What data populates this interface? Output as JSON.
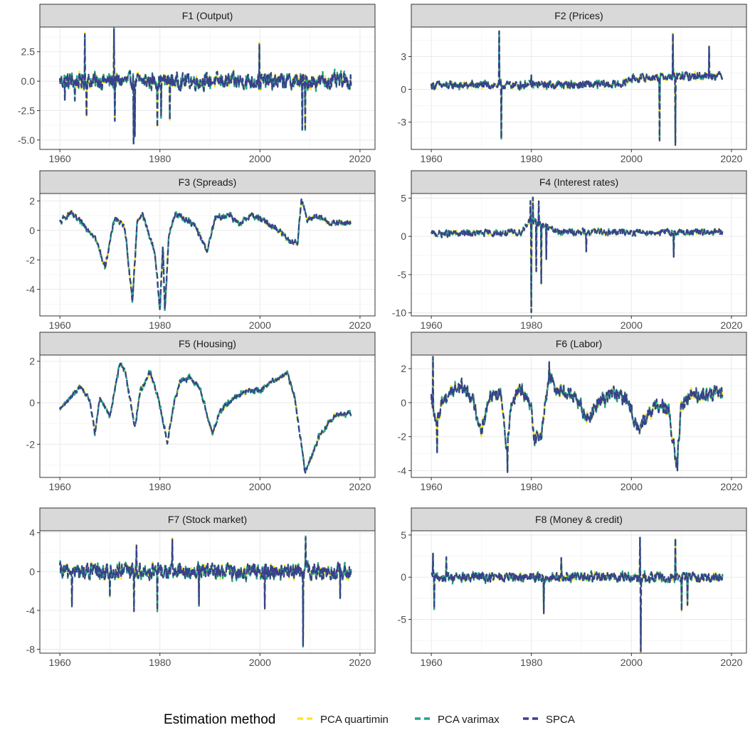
{
  "legend": {
    "title": "Estimation method",
    "entries": [
      {
        "label": "PCA quartimin",
        "color": "#FDE725"
      },
      {
        "label": "PCA varimax",
        "color": "#21A585"
      },
      {
        "label": "SPCA",
        "color": "#3B3F8C"
      }
    ]
  },
  "chart_data": [
    {
      "type": "line",
      "title": "F1 (Output)",
      "xlim": [
        1956,
        2023
      ],
      "ylim": [
        -5.8,
        4.6
      ],
      "xticks": [
        1960,
        1980,
        2000,
        2020
      ],
      "yticks": [
        2.5,
        0.0,
        -2.5,
        -5.0
      ],
      "ytick_labels": [
        "2.5",
        "0.0",
        "-2.5",
        "-5.0"
      ],
      "series_shape": {
        "start": 1960,
        "end": 2018.2,
        "base": 0,
        "noise": 0.65,
        "trend": [],
        "spikes": [
          [
            1961,
            -1.6
          ],
          [
            1963,
            -1.6
          ],
          [
            1965,
            4.0
          ],
          [
            1965.3,
            -3.0
          ],
          [
            1970.8,
            4.4
          ],
          [
            1971,
            -3.4
          ],
          [
            1974.7,
            -5.4
          ],
          [
            1975,
            -4.7
          ],
          [
            1979.5,
            -3.9
          ],
          [
            1980.2,
            -3.0
          ],
          [
            1982,
            -3.3
          ],
          [
            1999.9,
            3.2
          ],
          [
            2008.5,
            -4.1
          ],
          [
            2009,
            -4.0
          ]
        ]
      }
    },
    {
      "type": "line",
      "title": "F2 (Prices)",
      "xlim": [
        1956,
        2023
      ],
      "ylim": [
        -5.5,
        5.7
      ],
      "xticks": [
        1960,
        1980,
        2000,
        2020
      ],
      "yticks": [
        3,
        0,
        -3
      ],
      "ytick_labels": [
        "3",
        "0",
        "-3"
      ],
      "series_shape": {
        "start": 1960,
        "end": 2018.2,
        "base": 0,
        "noise": 0.35,
        "trend": [
          [
            1960,
            0.35
          ],
          [
            1998,
            0.45
          ],
          [
            2000,
            1.0
          ],
          [
            2018,
            1.3
          ]
        ],
        "spikes": [
          [
            1973.6,
            5.3
          ],
          [
            1974,
            -4.5
          ],
          [
            1980,
            1.3
          ],
          [
            2005.6,
            -4.7
          ],
          [
            2008.3,
            5.1
          ],
          [
            2008.8,
            -5.1
          ],
          [
            2015.5,
            3.9
          ]
        ]
      }
    },
    {
      "type": "line",
      "title": "F3 (Spreads)",
      "xlim": [
        1956,
        2023
      ],
      "ylim": [
        -5.8,
        2.5
      ],
      "xticks": [
        1960,
        1980,
        2000,
        2020
      ],
      "yticks": [
        2,
        0,
        -2,
        -4
      ],
      "ytick_labels": [
        "2",
        "0",
        "-2",
        "-4"
      ],
      "series_shape": {
        "start": 1960,
        "end": 2018.2,
        "base": 0,
        "noise": 0.18,
        "trend": [
          [
            1960,
            0.5
          ],
          [
            1962,
            1.2
          ],
          [
            1965,
            0.3
          ],
          [
            1967,
            -0.4
          ],
          [
            1969,
            -2.5
          ],
          [
            1971,
            0.9
          ],
          [
            1973,
            0.2
          ],
          [
            1974.5,
            -4.8
          ],
          [
            1975.5,
            0.7
          ],
          [
            1976.5,
            1.1
          ],
          [
            1979,
            -1.5
          ],
          [
            1980,
            -5.4
          ],
          [
            1980.6,
            -1.0
          ],
          [
            1981,
            -5.4
          ],
          [
            1981.8,
            -0.3
          ],
          [
            1983,
            1.1
          ],
          [
            1985,
            0.8
          ],
          [
            1987,
            0.3
          ],
          [
            1989.5,
            -1.4
          ],
          [
            1991,
            0.8
          ],
          [
            1994,
            1.1
          ],
          [
            1996,
            0.3
          ],
          [
            1998,
            1.1
          ],
          [
            2001,
            0.6
          ],
          [
            2003,
            0.2
          ],
          [
            2006,
            -0.7
          ],
          [
            2007.5,
            -0.9
          ],
          [
            2008.3,
            2.2
          ],
          [
            2009.5,
            0.6
          ],
          [
            2011,
            1.0
          ],
          [
            2014,
            0.5
          ],
          [
            2018,
            0.5
          ]
        ],
        "spikes": []
      }
    },
    {
      "type": "line",
      "title": "F4 (Interest rates)",
      "xlim": [
        1956,
        2023
      ],
      "ylim": [
        -10.4,
        5.6
      ],
      "xticks": [
        1960,
        1980,
        2000,
        2020
      ],
      "yticks": [
        5,
        0,
        -5,
        -10
      ],
      "ytick_labels": [
        "5",
        "0",
        "-5",
        "-10"
      ],
      "series_shape": {
        "start": 1960,
        "end": 2018.2,
        "base": 0,
        "noise": 0.4,
        "trend": [
          [
            1960,
            0.3
          ],
          [
            1978,
            0.5
          ],
          [
            1979.5,
            2.0
          ],
          [
            1983,
            1.3
          ],
          [
            1985,
            0.6
          ],
          [
            2018,
            0.5
          ]
        ],
        "spikes": [
          [
            1979.8,
            4.6
          ],
          [
            1980,
            -9.9
          ],
          [
            1980.3,
            5.1
          ],
          [
            1981,
            -4.5
          ],
          [
            1981.5,
            4.6
          ],
          [
            1982,
            -6.2
          ],
          [
            1983,
            -3.0
          ],
          [
            1991,
            -2.0
          ],
          [
            2008.5,
            -2.7
          ]
        ]
      }
    },
    {
      "type": "line",
      "title": "F5 (Housing)",
      "xlim": [
        1956,
        2023
      ],
      "ylim": [
        -3.6,
        2.3
      ],
      "xticks": [
        1960,
        1980,
        2000,
        2020
      ],
      "yticks": [
        2,
        0,
        -2
      ],
      "ytick_labels": [
        "2",
        "0",
        "-2"
      ],
      "series_shape": {
        "start": 1960,
        "end": 2018.2,
        "base": 0,
        "noise": 0.1,
        "trend": [
          [
            1960,
            -0.3
          ],
          [
            1962,
            0.2
          ],
          [
            1964,
            0.8
          ],
          [
            1966,
            0.1
          ],
          [
            1967,
            -1.5
          ],
          [
            1968,
            0.2
          ],
          [
            1970,
            -0.6
          ],
          [
            1972,
            1.9
          ],
          [
            1973,
            1.6
          ],
          [
            1975,
            -1.2
          ],
          [
            1976,
            0.5
          ],
          [
            1978,
            1.5
          ],
          [
            1979.5,
            0.4
          ],
          [
            1981.5,
            -1.9
          ],
          [
            1983,
            0.2
          ],
          [
            1984,
            1.0
          ],
          [
            1986,
            1.2
          ],
          [
            1988,
            0.7
          ],
          [
            1990.5,
            -1.5
          ],
          [
            1992,
            -0.4
          ],
          [
            1995,
            0.3
          ],
          [
            1998,
            0.6
          ],
          [
            2000,
            0.6
          ],
          [
            2002,
            1.0
          ],
          [
            2005.5,
            1.4
          ],
          [
            2007,
            0.2
          ],
          [
            2009,
            -3.3
          ],
          [
            2010.5,
            -2.5
          ],
          [
            2012,
            -1.5
          ],
          [
            2015,
            -0.6
          ],
          [
            2018,
            -0.5
          ]
        ],
        "spikes": []
      }
    },
    {
      "type": "line",
      "title": "F6 (Labor)",
      "xlim": [
        1956,
        2023
      ],
      "ylim": [
        -4.4,
        2.8
      ],
      "xticks": [
        1960,
        1980,
        2000,
        2020
      ],
      "yticks": [
        2,
        0,
        -2,
        -4
      ],
      "ytick_labels": [
        "2",
        "0",
        "-2",
        "-4"
      ],
      "series_shape": {
        "start": 1960,
        "end": 2018.2,
        "base": 0,
        "noise": 0.4,
        "trend": [
          [
            1960,
            0.2
          ],
          [
            1961,
            -1.5
          ],
          [
            1962,
            0.0
          ],
          [
            1964,
            0.7
          ],
          [
            1966,
            1.0
          ],
          [
            1968,
            0.4
          ],
          [
            1970,
            -1.6
          ],
          [
            1972,
            0.6
          ],
          [
            1974,
            0.5
          ],
          [
            1975,
            -2.6
          ],
          [
            1976,
            0.0
          ],
          [
            1978,
            0.8
          ],
          [
            1980,
            -0.4
          ],
          [
            1980.6,
            -2.0
          ],
          [
            1982,
            -2.0
          ],
          [
            1983.5,
            1.6
          ],
          [
            1985,
            0.8
          ],
          [
            1988,
            0.5
          ],
          [
            1990,
            -0.3
          ],
          [
            1991.5,
            -0.9
          ],
          [
            1993,
            -0.1
          ],
          [
            1996,
            0.6
          ],
          [
            1999,
            0.2
          ],
          [
            2001.5,
            -1.6
          ],
          [
            2003,
            -0.8
          ],
          [
            2006,
            0.0
          ],
          [
            2007.5,
            -0.6
          ],
          [
            2009,
            -3.8
          ],
          [
            2010,
            -0.2
          ],
          [
            2012,
            0.5
          ],
          [
            2018,
            0.5
          ]
        ],
        "spikes": [
          [
            1960.3,
            2.7
          ],
          [
            1961.2,
            -3.0
          ],
          [
            1975.2,
            -4.1
          ],
          [
            1983.6,
            2.4
          ],
          [
            2009.2,
            -4.0
          ]
        ]
      }
    },
    {
      "type": "line",
      "title": "F7 (Stock market)",
      "xlim": [
        1956,
        2023
      ],
      "ylim": [
        -8.4,
        4.2
      ],
      "xticks": [
        1960,
        1980,
        2000,
        2020
      ],
      "yticks": [
        4,
        0,
        -4,
        -8
      ],
      "ytick_labels": [
        "4",
        "0",
        "-4",
        "-8"
      ],
      "series_shape": {
        "start": 1960,
        "end": 2018.2,
        "base": 0,
        "noise": 0.8,
        "trend": [],
        "spikes": [
          [
            1962.4,
            -3.6
          ],
          [
            1970,
            -2.6
          ],
          [
            1974.8,
            -4.1
          ],
          [
            1975.3,
            2.7
          ],
          [
            1979.5,
            -4.0
          ],
          [
            1982.5,
            3.3
          ],
          [
            1987.8,
            -3.4
          ],
          [
            2001,
            -3.8
          ],
          [
            2008.6,
            -7.6
          ],
          [
            2009.1,
            3.5
          ],
          [
            2016,
            -2.7
          ]
        ]
      }
    },
    {
      "type": "line",
      "title": "F8 (Money & credit)",
      "xlim": [
        1956,
        2023
      ],
      "ylim": [
        -9.0,
        5.5
      ],
      "xticks": [
        1960,
        1980,
        2000,
        2020
      ],
      "yticks": [
        5,
        0,
        -5
      ],
      "ytick_labels": [
        "5",
        "0",
        "-5"
      ],
      "series_shape": {
        "start": 1960,
        "end": 2018.2,
        "base": 0,
        "noise": 0.55,
        "trend": [],
        "spikes": [
          [
            1960.3,
            2.8
          ],
          [
            1960.6,
            -3.7
          ],
          [
            1963,
            2.4
          ],
          [
            1982.5,
            -4.3
          ],
          [
            1986,
            2.3
          ],
          [
            2001.7,
            4.7
          ],
          [
            2001.9,
            -8.8
          ],
          [
            2008.8,
            4.6
          ],
          [
            2010,
            -4.0
          ],
          [
            2011.2,
            -3.3
          ]
        ]
      }
    }
  ]
}
